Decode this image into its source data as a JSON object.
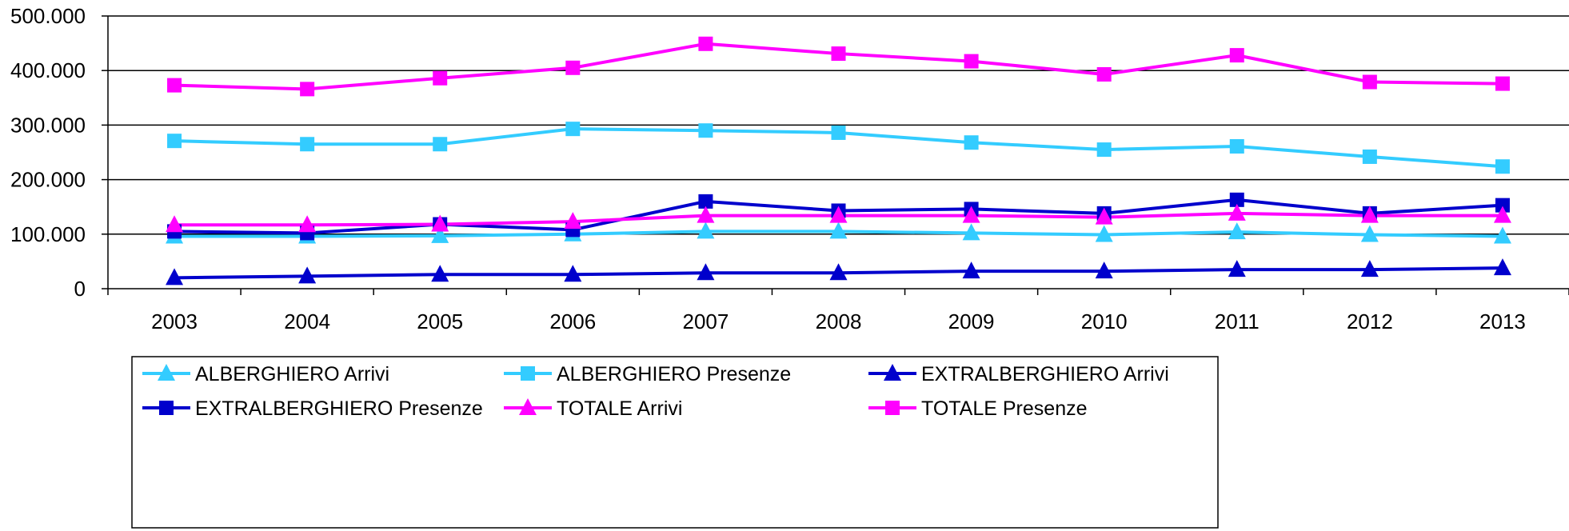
{
  "chart_data": {
    "type": "line",
    "categories": [
      "2003",
      "2004",
      "2005",
      "2006",
      "2007",
      "2008",
      "2009",
      "2010",
      "2011",
      "2012",
      "2013"
    ],
    "ylim": [
      0,
      500000
    ],
    "yticks": [
      0,
      100000,
      200000,
      300000,
      400000,
      500000
    ],
    "ytick_labels": [
      "0",
      "100.000",
      "200.000",
      "300.000",
      "400.000",
      "500.000"
    ],
    "grid": true,
    "legend_position": "bottom",
    "series": [
      {
        "name": "ALBERGHIERO Arrivi",
        "color": "#33CCFF",
        "marker": "triangle",
        "values": [
          96000,
          96000,
          97000,
          100000,
          105000,
          105000,
          102000,
          99000,
          104000,
          99000,
          96000
        ]
      },
      {
        "name": "ALBERGHIERO Presenze",
        "color": "#33CCFF",
        "marker": "square",
        "values": [
          271000,
          265000,
          265000,
          293000,
          290000,
          286000,
          268000,
          255000,
          261000,
          242000,
          224000
        ]
      },
      {
        "name": "EXTRALBERGHIERO Arrivi",
        "color": "#0000CC",
        "marker": "triangle",
        "values": [
          20000,
          23000,
          26000,
          26000,
          29000,
          29000,
          32000,
          32000,
          35000,
          35000,
          38000
        ]
      },
      {
        "name": "EXTRALBERGHIERO Presenze",
        "color": "#0000CC",
        "marker": "square",
        "values": [
          105000,
          102000,
          118000,
          108000,
          160000,
          143000,
          146000,
          138000,
          163000,
          138000,
          153000
        ]
      },
      {
        "name": "TOTALE Arrivi",
        "color": "#FF00FF",
        "marker": "triangle",
        "values": [
          117000,
          117000,
          118000,
          123000,
          134000,
          134000,
          134000,
          131000,
          138000,
          134000,
          134000
        ]
      },
      {
        "name": "TOTALE Presenze",
        "color": "#FF00FF",
        "marker": "square",
        "values": [
          373000,
          366000,
          386000,
          405000,
          449000,
          431000,
          417000,
          393000,
          428000,
          379000,
          376000
        ]
      }
    ]
  }
}
